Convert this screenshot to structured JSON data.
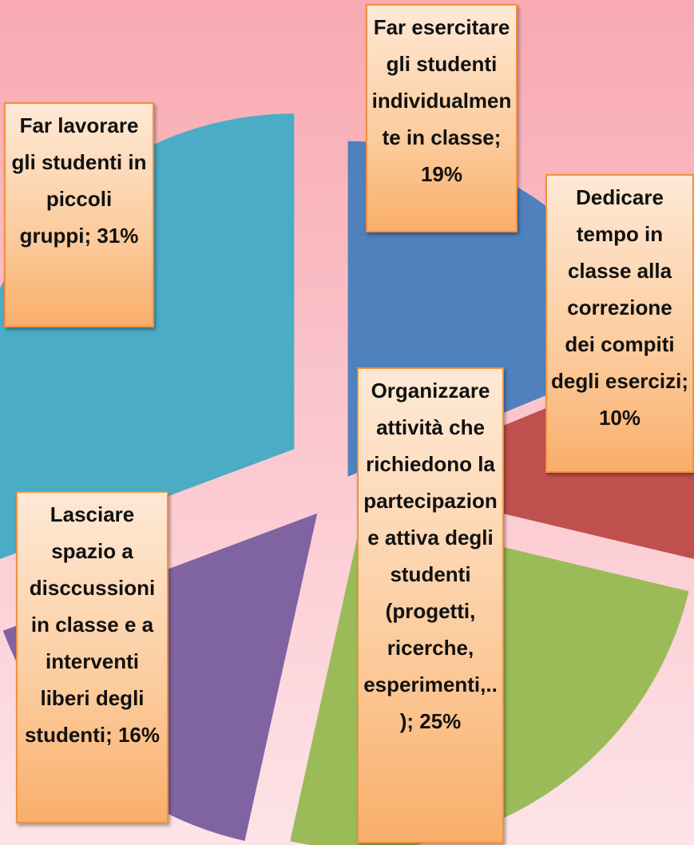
{
  "chart_data": {
    "type": "pie",
    "categories": [
      "Far esercitare gli studenti individualmente in classe;",
      "Dedicare tempo in classe alla correzione dei compiti degli esercizi;",
      "Organizzare attività che richiedono la partecipazione attiva degli studenti (progetti, ricerche, esperimenti,..);",
      "Lasciare spazio a disccussioni in classe e a interventi liberi degli studenti;",
      "Far lavorare gli studenti in piccoli gruppi;"
    ],
    "values": [
      19,
      10,
      25,
      16,
      31
    ],
    "value_labels": [
      "19%",
      "10%",
      "25%",
      "16%",
      "31%"
    ],
    "colors": [
      "#4f81bd",
      "#c0504d",
      "#9bbb59",
      "#8064a2",
      "#4bacc6"
    ]
  }
}
